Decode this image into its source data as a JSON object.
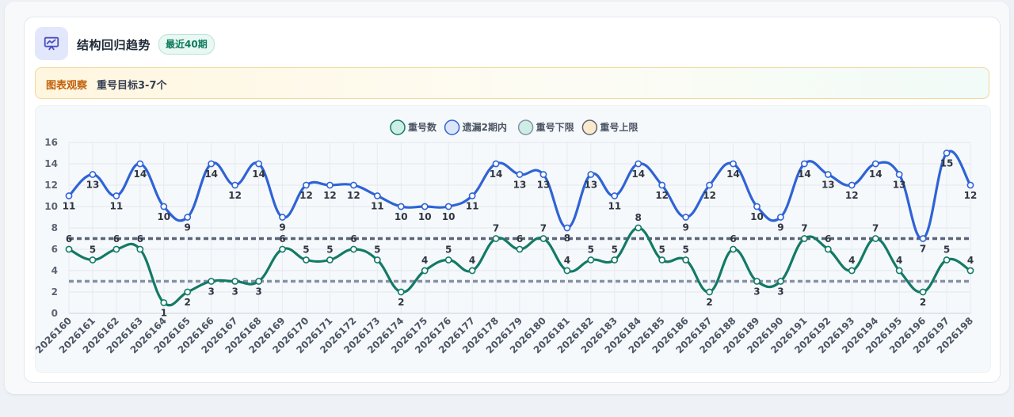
{
  "header": {
    "title": "结构回归趋势",
    "badge": "最近40期"
  },
  "note": {
    "label": "图表观察",
    "text": "重号目标3-7个"
  },
  "colors": {
    "repeat": "#137a66",
    "missed2": "#2f63d6",
    "lower_limit": "#8691a8",
    "upper_limit": "#5a6378",
    "icon": "#4b4fc2"
  },
  "chart_data": {
    "type": "line",
    "legend": [
      "重号数",
      "遗漏2期内",
      "重号下限",
      "重号上限"
    ],
    "x": [
      "2026160",
      "2026161",
      "2026162",
      "2026163",
      "2026164",
      "2026165",
      "2026166",
      "2026167",
      "2026168",
      "2026169",
      "2026170",
      "2026171",
      "2026172",
      "2026173",
      "2026174",
      "2026175",
      "2026176",
      "2026177",
      "2026178",
      "2026179",
      "2026180",
      "2026181",
      "2026182",
      "2026183",
      "2026184",
      "2026185",
      "2026186",
      "2026187",
      "2026188",
      "2026189",
      "2026190",
      "2026191",
      "2026192",
      "2026193",
      "2026194",
      "2026195",
      "2026196",
      "2026197",
      "2026198"
    ],
    "series": [
      {
        "name": "重号数",
        "values": [
          6,
          5,
          6,
          6,
          1,
          2,
          3,
          3,
          3,
          6,
          5,
          5,
          6,
          5,
          2,
          4,
          5,
          4,
          7,
          6,
          7,
          4,
          5,
          5,
          8,
          5,
          5,
          2,
          6,
          3,
          3,
          7,
          6,
          4,
          7,
          4,
          2,
          5,
          4
        ]
      },
      {
        "name": "遗漏2期内",
        "values": [
          11,
          13,
          11,
          14,
          10,
          9,
          14,
          12,
          14,
          9,
          12,
          12,
          12,
          11,
          10,
          10,
          10,
          11,
          14,
          13,
          13,
          8,
          13,
          11,
          14,
          12,
          9,
          12,
          14,
          10,
          9,
          14,
          13,
          12,
          14,
          13,
          7,
          15,
          12
        ]
      },
      {
        "name": "重号下限",
        "value": 3
      },
      {
        "name": "重号上限",
        "value": 7
      }
    ],
    "ylim": [
      0,
      16
    ],
    "yticks": [
      0,
      2,
      4,
      6,
      8,
      10,
      12,
      14,
      16
    ],
    "grid": true,
    "legend_position": "top-center"
  }
}
